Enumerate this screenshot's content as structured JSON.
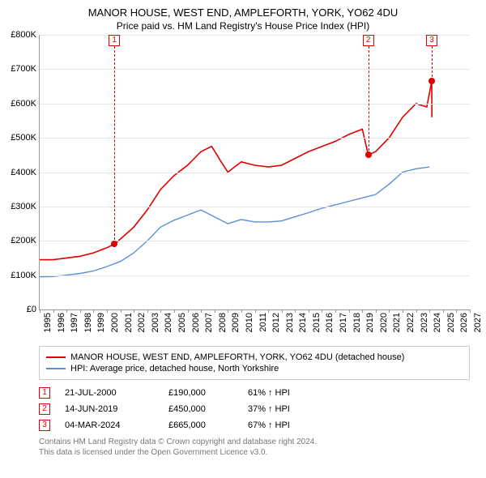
{
  "title": "MANOR HOUSE, WEST END, AMPLEFORTH, YORK, YO62 4DU",
  "subtitle": "Price paid vs. HM Land Registry's House Price Index (HPI)",
  "chart": {
    "type": "line",
    "background_color": "#ffffff",
    "grid_color": "#e5e5e5",
    "axis_color": "#999999",
    "xlim": [
      1995,
      2027
    ],
    "ylim": [
      0,
      800000
    ],
    "ytick_step": 100000,
    "yticks": [
      "£0",
      "£100K",
      "£200K",
      "£300K",
      "£400K",
      "£500K",
      "£600K",
      "£700K",
      "£800K"
    ],
    "xticks": [
      1995,
      1996,
      1997,
      1998,
      1999,
      2000,
      2001,
      2002,
      2003,
      2004,
      2005,
      2006,
      2007,
      2008,
      2009,
      2010,
      2011,
      2012,
      2013,
      2014,
      2015,
      2016,
      2017,
      2018,
      2019,
      2020,
      2021,
      2022,
      2023,
      2024,
      2025,
      2026,
      2027
    ],
    "series": [
      {
        "name": "MANOR HOUSE, WEST END, AMPLEFORTH, YORK, YO62 4DU (detached house)",
        "color": "#e00000",
        "line_width": 1.6,
        "data": [
          [
            1995,
            145000
          ],
          [
            1996,
            145000
          ],
          [
            1997,
            150000
          ],
          [
            1998,
            155000
          ],
          [
            1999,
            165000
          ],
          [
            2000,
            180000
          ],
          [
            2000.55,
            190000
          ],
          [
            2001,
            205000
          ],
          [
            2002,
            240000
          ],
          [
            2003,
            290000
          ],
          [
            2004,
            350000
          ],
          [
            2005,
            390000
          ],
          [
            2006,
            420000
          ],
          [
            2007,
            460000
          ],
          [
            2007.8,
            475000
          ],
          [
            2008.5,
            430000
          ],
          [
            2009,
            400000
          ],
          [
            2010,
            430000
          ],
          [
            2011,
            420000
          ],
          [
            2012,
            415000
          ],
          [
            2013,
            420000
          ],
          [
            2014,
            440000
          ],
          [
            2015,
            460000
          ],
          [
            2016,
            475000
          ],
          [
            2017,
            490000
          ],
          [
            2018,
            510000
          ],
          [
            2019,
            525000
          ],
          [
            2019.45,
            450000
          ],
          [
            2020,
            460000
          ],
          [
            2021,
            500000
          ],
          [
            2022,
            560000
          ],
          [
            2023,
            600000
          ],
          [
            2023.8,
            590000
          ],
          [
            2024.17,
            665000
          ],
          [
            2024.18,
            560000
          ]
        ]
      },
      {
        "name": "HPI: Average price, detached house, North Yorkshire",
        "color": "#5b8fd6",
        "line_width": 1.4,
        "data": [
          [
            1995,
            95000
          ],
          [
            1996,
            96000
          ],
          [
            1997,
            100000
          ],
          [
            1998,
            105000
          ],
          [
            1999,
            112000
          ],
          [
            2000,
            125000
          ],
          [
            2001,
            140000
          ],
          [
            2002,
            165000
          ],
          [
            2003,
            200000
          ],
          [
            2004,
            240000
          ],
          [
            2005,
            260000
          ],
          [
            2006,
            275000
          ],
          [
            2007,
            290000
          ],
          [
            2008,
            270000
          ],
          [
            2009,
            250000
          ],
          [
            2010,
            262000
          ],
          [
            2011,
            255000
          ],
          [
            2012,
            255000
          ],
          [
            2013,
            258000
          ],
          [
            2014,
            270000
          ],
          [
            2015,
            282000
          ],
          [
            2016,
            295000
          ],
          [
            2017,
            305000
          ],
          [
            2018,
            315000
          ],
          [
            2019,
            325000
          ],
          [
            2020,
            335000
          ],
          [
            2021,
            365000
          ],
          [
            2022,
            400000
          ],
          [
            2023,
            410000
          ],
          [
            2024,
            415000
          ]
        ]
      }
    ],
    "markers": [
      {
        "n": "1",
        "x": 2000.55,
        "y": 190000,
        "color": "#e00000"
      },
      {
        "n": "2",
        "x": 2019.45,
        "y": 450000,
        "color": "#e00000"
      },
      {
        "n": "3",
        "x": 2024.17,
        "y": 665000,
        "color": "#e00000"
      }
    ]
  },
  "legend": [
    {
      "label": "MANOR HOUSE, WEST END, AMPLEFORTH, YORK, YO62 4DU (detached house)",
      "color": "#e00000"
    },
    {
      "label": "HPI: Average price, detached house, North Yorkshire",
      "color": "#5b8fd6"
    }
  ],
  "events": [
    {
      "n": "1",
      "date": "21-JUL-2000",
      "price": "£190,000",
      "hpi": "61%",
      "arrow": "↑",
      "hpi_label": "HPI"
    },
    {
      "n": "2",
      "date": "14-JUN-2019",
      "price": "£450,000",
      "hpi": "37%",
      "arrow": "↑",
      "hpi_label": "HPI"
    },
    {
      "n": "3",
      "date": "04-MAR-2024",
      "price": "£665,000",
      "hpi": "67%",
      "arrow": "↑",
      "hpi_label": "HPI"
    }
  ],
  "attribution_line1": "Contains HM Land Registry data © Crown copyright and database right 2024.",
  "attribution_line2": "This data is licensed under the Open Government Licence v3.0."
}
